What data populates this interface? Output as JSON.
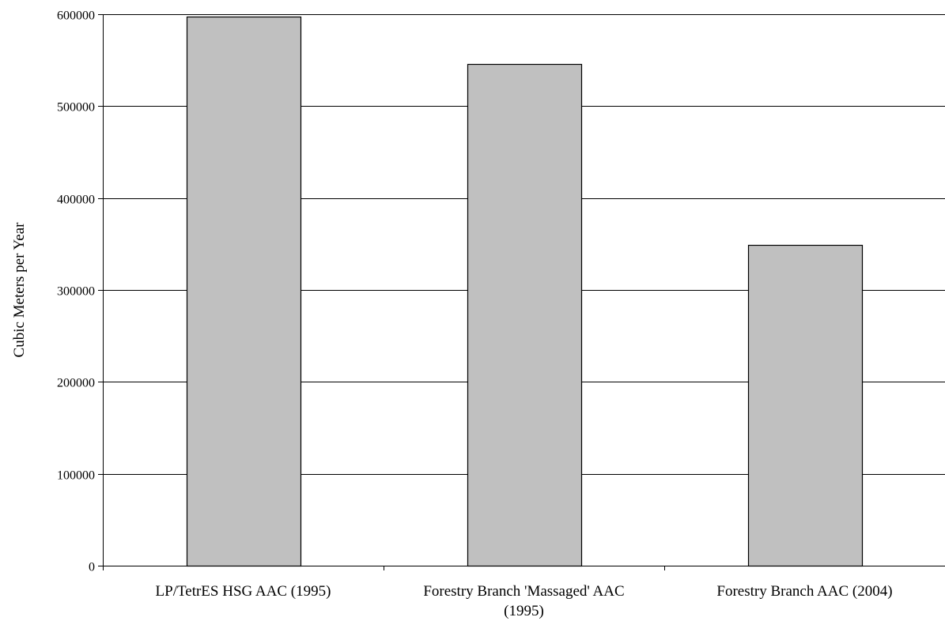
{
  "chart_data": {
    "type": "bar",
    "title": "",
    "xlabel": "",
    "ylabel": "Cubic Meters per Year",
    "categories": [
      [
        "LP/TetrES HSG AAC (1995)"
      ],
      [
        "Forestry Branch 'Massaged' AAC",
        "(1995)"
      ],
      [
        "Forestry Branch AAC (2004)"
      ]
    ],
    "values": [
      597000,
      546000,
      349000
    ],
    "ylim": [
      0,
      600000
    ],
    "yticks": [
      0,
      100000,
      200000,
      300000,
      400000,
      500000,
      600000
    ],
    "grid": true,
    "legend": "none",
    "bar_color": "#c0c0c0",
    "bar_edge_color": "#000000"
  }
}
